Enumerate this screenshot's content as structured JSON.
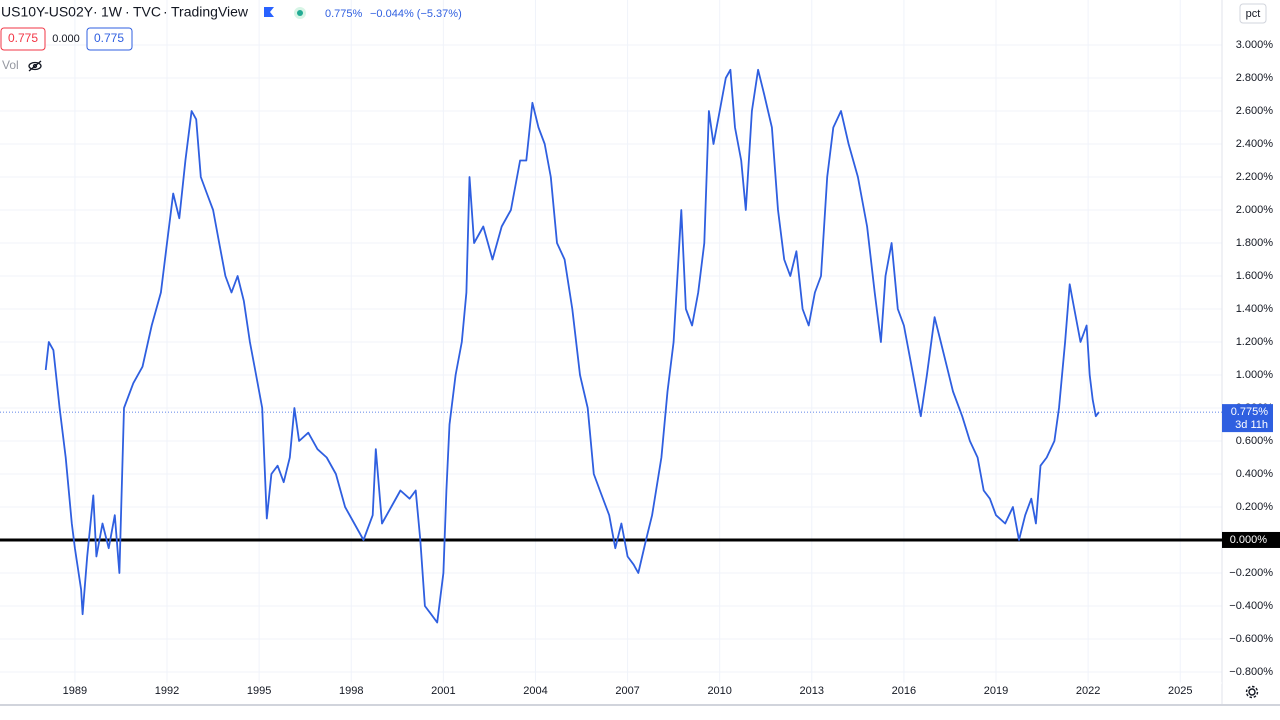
{
  "header": {
    "interval": "1W",
    "source": "TVC",
    "platform": "TradingView",
    "change": "−0.044% (−5.37%)",
    "box_values": [
      "0.775",
      "0.000",
      "0.775"
    ],
    "volume_label": "Vol",
    "scale_mode": "pct"
  },
  "chart_data": {
    "type": "line",
    "x": [
      1988.05,
      1988.15,
      1988.3,
      1988.5,
      1988.7,
      1988.9,
      1989.0,
      1989.2,
      1989.25,
      1989.4,
      1989.6,
      1989.7,
      1989.9,
      1990.1,
      1990.3,
      1990.45,
      1990.6,
      1990.9,
      1991.2,
      1991.5,
      1991.8,
      1992.0,
      1992.2,
      1992.4,
      1992.6,
      1992.8,
      1992.95,
      1993.1,
      1993.3,
      1993.5,
      1993.7,
      1993.9,
      1994.1,
      1994.3,
      1994.5,
      1994.7,
      1994.9,
      1995.1,
      1995.25,
      1995.4,
      1995.6,
      1995.8,
      1996.0,
      1996.15,
      1996.3,
      1996.6,
      1996.9,
      1997.2,
      1997.5,
      1997.8,
      1998.1,
      1998.4,
      1998.7,
      1998.8,
      1999.0,
      1999.3,
      1999.6,
      1999.9,
      2000.1,
      2000.25,
      2000.4,
      2000.6,
      2000.8,
      2001.0,
      2001.1,
      2001.2,
      2001.4,
      2001.6,
      2001.75,
      2001.85,
      2002.0,
      2002.3,
      2002.6,
      2002.9,
      2003.2,
      2003.5,
      2003.7,
      2003.9,
      2004.1,
      2004.3,
      2004.5,
      2004.7,
      2004.95,
      2005.2,
      2005.45,
      2005.7,
      2005.9,
      2006.1,
      2006.4,
      2006.6,
      2006.8,
      2007.0,
      2007.2,
      2007.35,
      2007.6,
      2007.8,
      2008.1,
      2008.3,
      2008.5,
      2008.75,
      2008.9,
      2009.1,
      2009.3,
      2009.5,
      2009.65,
      2009.8,
      2010.0,
      2010.2,
      2010.35,
      2010.5,
      2010.7,
      2010.85,
      2011.05,
      2011.25,
      2011.45,
      2011.7,
      2011.9,
      2012.1,
      2012.3,
      2012.5,
      2012.7,
      2012.9,
      2013.1,
      2013.3,
      2013.5,
      2013.7,
      2013.95,
      2014.2,
      2014.5,
      2014.8,
      2015.05,
      2015.25,
      2015.4,
      2015.6,
      2015.8,
      2016.0,
      2016.2,
      2016.4,
      2016.55,
      2016.75,
      2017.0,
      2017.2,
      2017.4,
      2017.6,
      2017.9,
      2018.15,
      2018.4,
      2018.6,
      2018.8,
      2019.0,
      2019.3,
      2019.55,
      2019.75,
      2019.95,
      2020.15,
      2020.3,
      2020.45,
      2020.65,
      2020.9,
      2021.05,
      2021.25,
      2021.4,
      2021.55,
      2021.75,
      2021.95,
      2022.05,
      2022.15,
      2022.25,
      2022.35
    ],
    "series": [
      {
        "name": "US10Y-US02Y",
        "color": "#2f5fe0",
        "values": [
          1.03,
          1.2,
          1.15,
          0.8,
          0.5,
          0.1,
          -0.05,
          -0.3,
          -0.45,
          -0.1,
          0.27,
          -0.1,
          0.1,
          -0.05,
          0.15,
          -0.2,
          0.8,
          0.95,
          1.05,
          1.3,
          1.5,
          1.8,
          2.1,
          1.95,
          2.3,
          2.6,
          2.55,
          2.2,
          2.1,
          2.0,
          1.8,
          1.6,
          1.5,
          1.6,
          1.45,
          1.2,
          1.0,
          0.8,
          0.13,
          0.4,
          0.45,
          0.35,
          0.5,
          0.8,
          0.6,
          0.65,
          0.55,
          0.5,
          0.4,
          0.2,
          0.1,
          0.0,
          0.15,
          0.55,
          0.1,
          0.2,
          0.3,
          0.25,
          0.3,
          0.0,
          -0.4,
          -0.45,
          -0.5,
          -0.2,
          0.3,
          0.7,
          1.0,
          1.2,
          1.5,
          2.2,
          1.8,
          1.9,
          1.7,
          1.9,
          2.0,
          2.3,
          2.3,
          2.65,
          2.5,
          2.4,
          2.2,
          1.8,
          1.7,
          1.4,
          1.0,
          0.8,
          0.4,
          0.3,
          0.15,
          -0.05,
          0.1,
          -0.1,
          -0.15,
          -0.2,
          0.0,
          0.15,
          0.5,
          0.9,
          1.2,
          2.0,
          1.4,
          1.3,
          1.5,
          1.8,
          2.6,
          2.4,
          2.6,
          2.8,
          2.85,
          2.5,
          2.3,
          2.0,
          2.6,
          2.85,
          2.7,
          2.5,
          2.0,
          1.7,
          1.6,
          1.75,
          1.4,
          1.3,
          1.5,
          1.6,
          2.2,
          2.5,
          2.6,
          2.4,
          2.2,
          1.9,
          1.5,
          1.2,
          1.6,
          1.8,
          1.4,
          1.3,
          1.1,
          0.9,
          0.75,
          1.0,
          1.35,
          1.2,
          1.05,
          0.9,
          0.75,
          0.6,
          0.5,
          0.3,
          0.25,
          0.15,
          0.1,
          0.2,
          0.0,
          0.15,
          0.25,
          0.1,
          0.45,
          0.5,
          0.6,
          0.8,
          1.2,
          1.55,
          1.4,
          1.2,
          1.3,
          1.0,
          0.85,
          0.75,
          0.775
        ]
      }
    ],
    "xlim": [
      1986.56,
      2026.36
    ],
    "xticks": [
      1989,
      1992,
      1995,
      1998,
      2001,
      2004,
      2007,
      2010,
      2013,
      2016,
      2019,
      2022,
      2025
    ],
    "ylim": [
      -0.867,
      3.273
    ],
    "yticks": [
      {
        "value": -0.8,
        "label": "−0.800%"
      },
      {
        "value": -0.6,
        "label": "−0.600%"
      },
      {
        "value": -0.4,
        "label": "−0.400%"
      },
      {
        "value": -0.2,
        "label": "−0.200%"
      },
      {
        "value": 0,
        "label": "0.000%"
      },
      {
        "value": 0.2,
        "label": "0.200%"
      },
      {
        "value": 0.4,
        "label": "0.400%"
      },
      {
        "value": 0.6,
        "label": "0.600%"
      },
      {
        "value": 0.8,
        "label": "0.800%"
      },
      {
        "value": 1.0,
        "label": "1.000%"
      },
      {
        "value": 1.2,
        "label": "1.200%"
      },
      {
        "value": 1.4,
        "label": "1.400%"
      },
      {
        "value": 1.6,
        "label": "1.600%"
      },
      {
        "value": 1.8,
        "label": "1.800%"
      },
      {
        "value": 2.0,
        "label": "2.000%"
      },
      {
        "value": 2.2,
        "label": "2.200%"
      },
      {
        "value": 2.4,
        "label": "2.400%"
      },
      {
        "value": 2.6,
        "label": "2.600%"
      },
      {
        "value": 2.8,
        "label": "2.800%"
      },
      {
        "value": 3.0,
        "label": "3.000%"
      }
    ],
    "grid": true,
    "reference_line": {
      "value": 0,
      "color": "#000000",
      "label": "0.000%"
    },
    "last_price": {
      "value": 0.775,
      "label": "0.775%",
      "countdown": "3d 11h"
    }
  }
}
